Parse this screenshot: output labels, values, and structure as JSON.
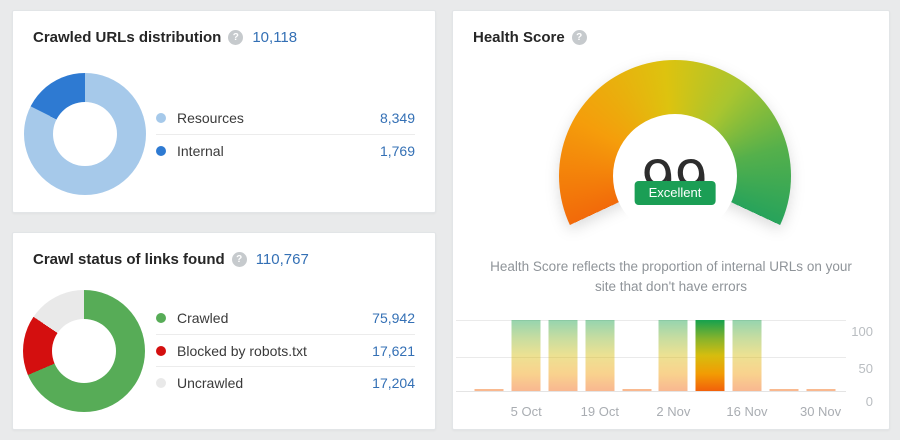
{
  "colors": {
    "page_background": "#e9eaeb",
    "card_background": "#ffffff",
    "link_blue": "#3470b5",
    "badge_green": "#1b9e55",
    "text_dark": "#262626",
    "text_muted": "#8f9499"
  },
  "icons": {
    "help": "?"
  },
  "cards": {
    "crawled_urls": {
      "title": "Crawled URLs distribution",
      "total": "10,118",
      "legend": [
        {
          "label": "Resources",
          "value": "8,349"
        },
        {
          "label": "Internal",
          "value": "1,769"
        }
      ]
    },
    "crawl_status": {
      "title": "Crawl status of links found",
      "total": "110,767",
      "legend": [
        {
          "label": "Crawled",
          "value": "75,942"
        },
        {
          "label": "Blocked by robots.txt",
          "value": "17,621"
        },
        {
          "label": "Uncrawled",
          "value": "17,204"
        }
      ]
    },
    "health_score": {
      "title": "Health Score",
      "score": "99",
      "rating": "Excellent",
      "description": "Health Score reflects the proportion of internal URLs on your site that don't have errors"
    }
  },
  "chart_data": [
    {
      "type": "pie",
      "title": "Crawled URLs distribution",
      "total": 10118,
      "labels": [
        "Resources",
        "Internal"
      ],
      "values": [
        8349,
        1769
      ],
      "colors": [
        "#a6c9ea",
        "#2e7ad2"
      ],
      "donut": true
    },
    {
      "type": "pie",
      "title": "Crawl status of links found",
      "total": 110767,
      "labels": [
        "Crawled",
        "Blocked by robots.txt",
        "Uncrawled"
      ],
      "values": [
        75942,
        17621,
        17204
      ],
      "colors": [
        "#57ac57",
        "#d40f0f",
        "#e9e9e9"
      ],
      "donut": true
    },
    {
      "type": "bar",
      "title": "Health Score history",
      "x_labels": [
        "",
        "5 Oct",
        "",
        "19 Oct",
        "",
        "2 Nov",
        "",
        "16 Nov",
        "",
        "30 Nov"
      ],
      "values": [
        2,
        100,
        100,
        100,
        2,
        100,
        100,
        100,
        2,
        2
      ],
      "highlighted_index": 6,
      "ylim": [
        0,
        100
      ],
      "ytick_labels": [
        "100",
        "50",
        "0"
      ],
      "grid": true,
      "yaxis_position": "right"
    },
    {
      "type": "gauge",
      "title": "Health Score",
      "value": 99,
      "range": [
        0,
        100
      ],
      "rating": "Excellent",
      "start_deg": 245,
      "sweep_deg": 230,
      "stops": [
        [
          "#f26a0a",
          0
        ],
        [
          "#f59d0b",
          55
        ],
        [
          "#ddc30f",
          110
        ],
        [
          "#a9c52f",
          150
        ],
        [
          "#55b04b",
          190
        ],
        [
          "#27a35b",
          230
        ]
      ]
    }
  ]
}
